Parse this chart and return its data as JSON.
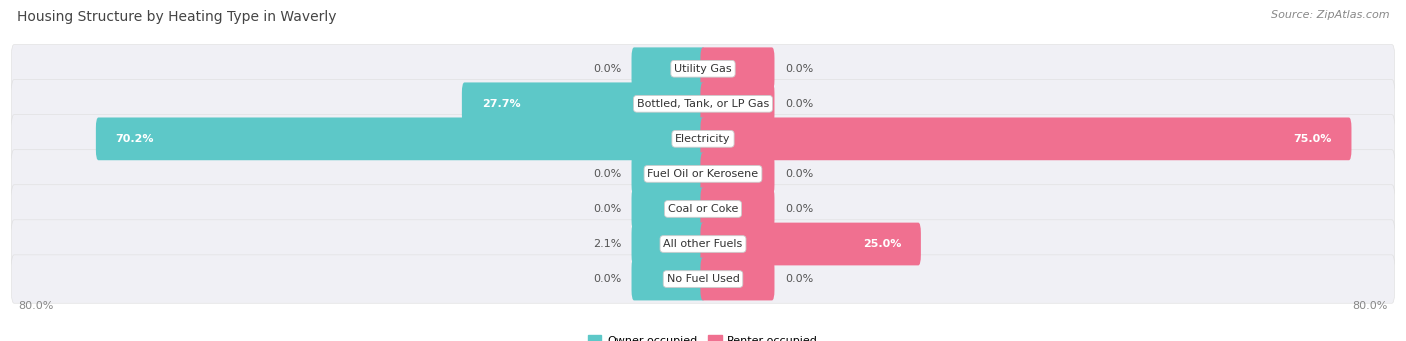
{
  "title": "Housing Structure by Heating Type in Waverly",
  "source": "Source: ZipAtlas.com",
  "categories": [
    "Utility Gas",
    "Bottled, Tank, or LP Gas",
    "Electricity",
    "Fuel Oil or Kerosene",
    "Coal or Coke",
    "All other Fuels",
    "No Fuel Used"
  ],
  "owner_values": [
    0.0,
    27.7,
    70.2,
    0.0,
    0.0,
    2.1,
    0.0
  ],
  "renter_values": [
    0.0,
    0.0,
    75.0,
    0.0,
    0.0,
    25.0,
    0.0
  ],
  "owner_color": "#5DC8C8",
  "renter_color": "#F07090",
  "owner_label": "Owner-occupied",
  "renter_label": "Renter-occupied",
  "xlim": 80.0,
  "x_left_label": "80.0%",
  "x_right_label": "80.0%",
  "background_color": "#ffffff",
  "bar_bg_color": "#f0f0f5",
  "bar_bg_edge_color": "#dddddd",
  "title_fontsize": 10,
  "source_fontsize": 8,
  "label_fontsize": 8,
  "value_fontsize": 8,
  "bar_height": 0.62,
  "stub_size": 8.0,
  "default_bar_size": 8.0
}
